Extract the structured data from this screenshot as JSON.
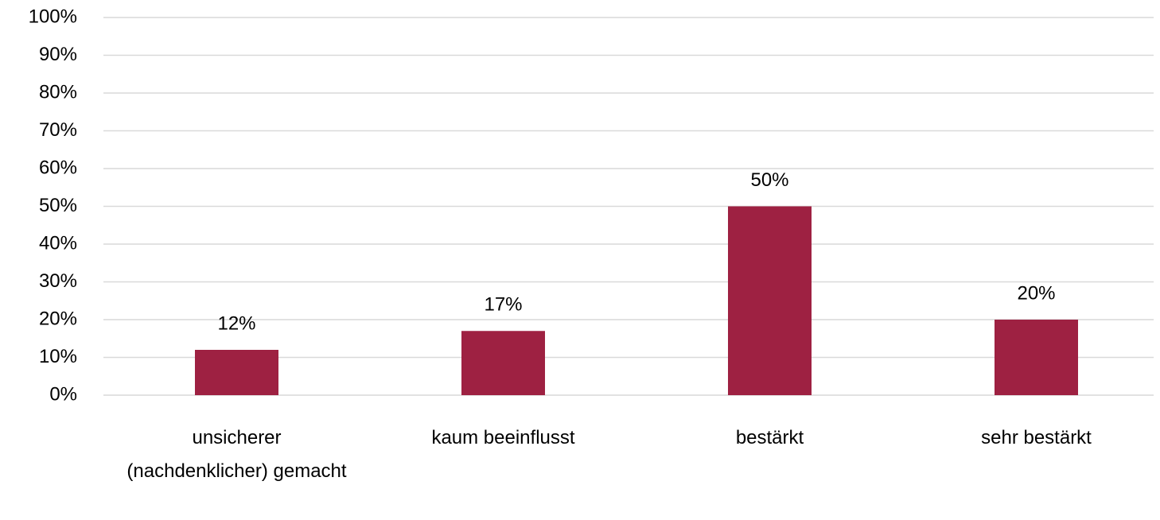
{
  "chart_data": {
    "type": "bar",
    "categories": [
      "unsicherer (nachdenklicher) gemacht",
      "kaum beeinflusst",
      "bestärkt",
      "sehr bestärkt"
    ],
    "values": [
      12,
      17,
      50,
      20
    ],
    "value_labels": [
      "12%",
      "17%",
      "50%",
      "20%"
    ],
    "color": "#9e2142",
    "ylim": [
      0,
      100
    ],
    "yticks": [
      {
        "value": 0,
        "label": "0%"
      },
      {
        "value": 10,
        "label": "10%"
      },
      {
        "value": 20,
        "label": "20%"
      },
      {
        "value": 30,
        "label": "30%"
      },
      {
        "value": 40,
        "label": "40%"
      },
      {
        "value": 50,
        "label": "50%"
      },
      {
        "value": 60,
        "label": "60%"
      },
      {
        "value": 70,
        "label": "70%"
      },
      {
        "value": 80,
        "label": "80%"
      },
      {
        "value": 90,
        "label": "90%"
      },
      {
        "value": 100,
        "label": "100%"
      }
    ],
    "grid": true
  }
}
